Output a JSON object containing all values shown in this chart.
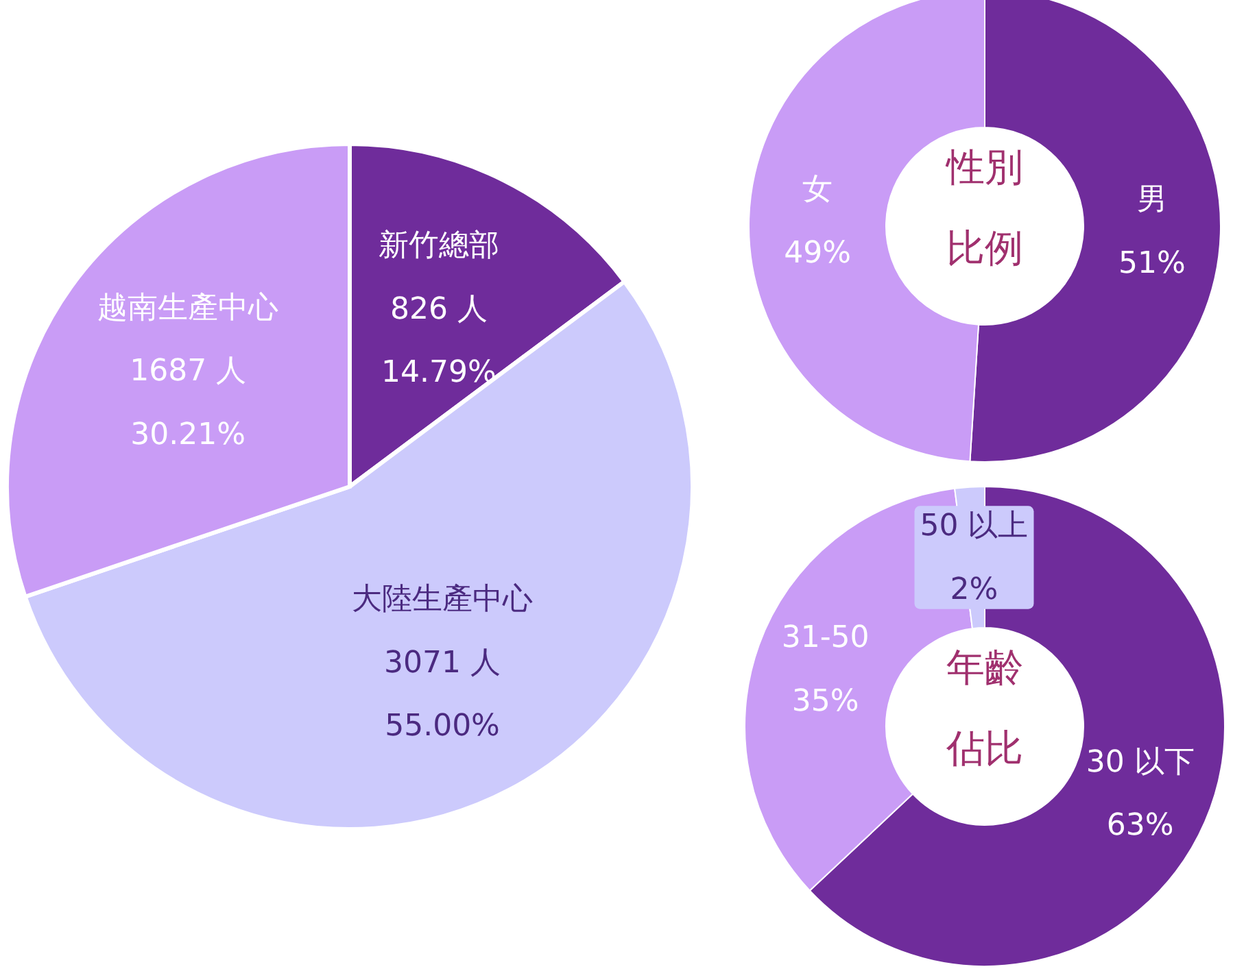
{
  "chart_data": [
    {
      "type": "pie",
      "categories": [
        "新竹總部",
        "大陸生產中心",
        "越南生產中心"
      ],
      "values": [
        826,
        3071,
        1687
      ],
      "value_labels": [
        "826 人\n14.79%",
        "3071 人\n55.00%",
        "1687 人\n30.21%"
      ],
      "colors": [
        "#6f2c9b",
        "#cccafc",
        "#c99cf6"
      ]
    },
    {
      "type": "donut",
      "title": "性別比例",
      "categories": [
        "男",
        "女"
      ],
      "values": [
        51,
        49
      ],
      "value_labels": [
        "51%",
        "49%"
      ],
      "colors": [
        "#6f2c9b",
        "#c99cf6"
      ]
    },
    {
      "type": "donut",
      "title": "年齡佔比",
      "categories": [
        "30 以下",
        "31-50",
        "50 以上"
      ],
      "values": [
        63,
        35,
        2
      ],
      "value_labels": [
        "63%",
        "35%",
        "2%"
      ],
      "colors": [
        "#6f2c9b",
        "#c99cf6",
        "#cccafc"
      ]
    }
  ]
}
